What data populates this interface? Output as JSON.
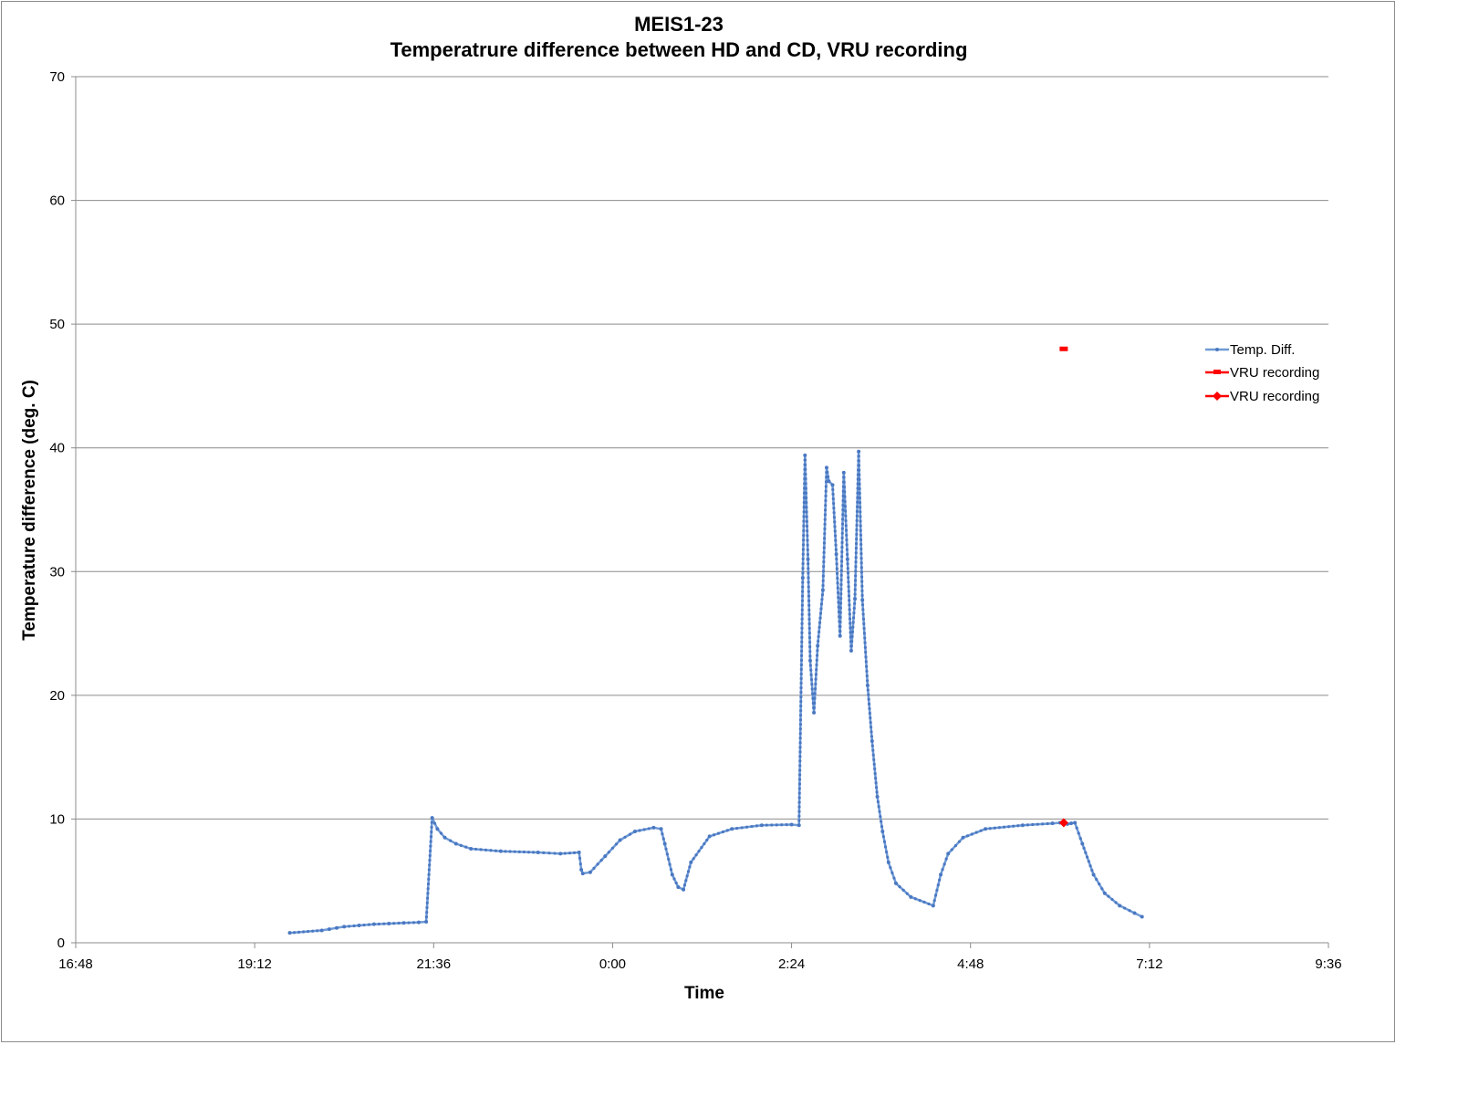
{
  "chart_data": {
    "type": "line",
    "title": "MEIS1-23",
    "subtitle": "Temperatrure difference between HD and CD, VRU recording",
    "xlabel": "Time",
    "ylabel": "Temperature difference (deg. C)",
    "x_ticks": [
      "16:48",
      "19:12",
      "21:36",
      "0:00",
      "2:24",
      "4:48",
      "7:12",
      "9:36"
    ],
    "y_ticks": [
      "0",
      "10",
      "20",
      "30",
      "40",
      "50",
      "60",
      "70"
    ],
    "xlim_hours": [
      16.8,
      33.6
    ],
    "ylim": [
      0,
      70
    ],
    "grid": "horizontal",
    "legend_position": "right",
    "colors": {
      "series1": "#6f9ad6",
      "series2": "#ff0000",
      "series3": "#ff0000"
    },
    "series": [
      {
        "name": "Temp. Diff.",
        "x_hours": [
          19.67,
          20.1,
          20.2,
          20.3,
          20.4,
          20.6,
          20.8,
          21.0,
          21.2,
          21.4,
          21.5,
          21.58,
          21.65,
          21.75,
          21.9,
          22.1,
          22.5,
          23.0,
          23.3,
          23.55,
          23.58,
          23.6,
          23.7,
          23.9,
          24.1,
          24.3,
          24.55,
          24.65,
          24.7,
          24.8,
          24.88,
          24.95,
          25.05,
          25.3,
          25.6,
          26.0,
          26.4,
          26.5,
          26.55,
          26.58,
          26.62,
          26.65,
          26.7,
          26.75,
          26.82,
          26.87,
          26.9,
          26.95,
          27.0,
          27.05,
          27.1,
          27.15,
          27.2,
          27.25,
          27.3,
          27.35,
          27.42,
          27.48,
          27.55,
          27.62,
          27.7,
          27.8,
          28.0,
          28.3,
          28.4,
          28.5,
          28.7,
          29.0,
          29.5,
          29.9,
          30.0,
          30.05,
          30.1,
          30.15,
          30.2,
          30.3,
          30.45,
          30.6,
          30.8,
          31.0,
          31.1
        ],
        "values": [
          0.8,
          1.0,
          1.1,
          1.2,
          1.3,
          1.4,
          1.5,
          1.55,
          1.6,
          1.65,
          1.7,
          10.1,
          9.2,
          8.5,
          8.0,
          7.6,
          7.4,
          7.3,
          7.2,
          7.3,
          5.9,
          5.6,
          5.7,
          7.0,
          8.3,
          9.0,
          9.3,
          9.2,
          8.0,
          5.5,
          4.5,
          4.3,
          6.5,
          8.6,
          9.2,
          9.5,
          9.55,
          9.5,
          29.5,
          39.4,
          31.0,
          22.8,
          18.6,
          24.0,
          28.5,
          38.4,
          37.3,
          37.0,
          31.4,
          24.8,
          38.0,
          31.0,
          23.6,
          27.8,
          39.7,
          27.7,
          20.8,
          16.3,
          11.8,
          9.0,
          6.5,
          4.8,
          3.7,
          3.0,
          5.5,
          7.2,
          8.5,
          9.2,
          9.5,
          9.65,
          9.7,
          9.65,
          9.6,
          9.65,
          9.7,
          8.0,
          5.5,
          4.0,
          3.0,
          2.4,
          2.1
        ]
      },
      {
        "name": "VRU recording",
        "x_hours": [
          30.05
        ],
        "values": [
          48.0
        ]
      },
      {
        "name": "VRU recording",
        "x_hours": [
          30.05
        ],
        "values": [
          9.7
        ]
      }
    ]
  }
}
